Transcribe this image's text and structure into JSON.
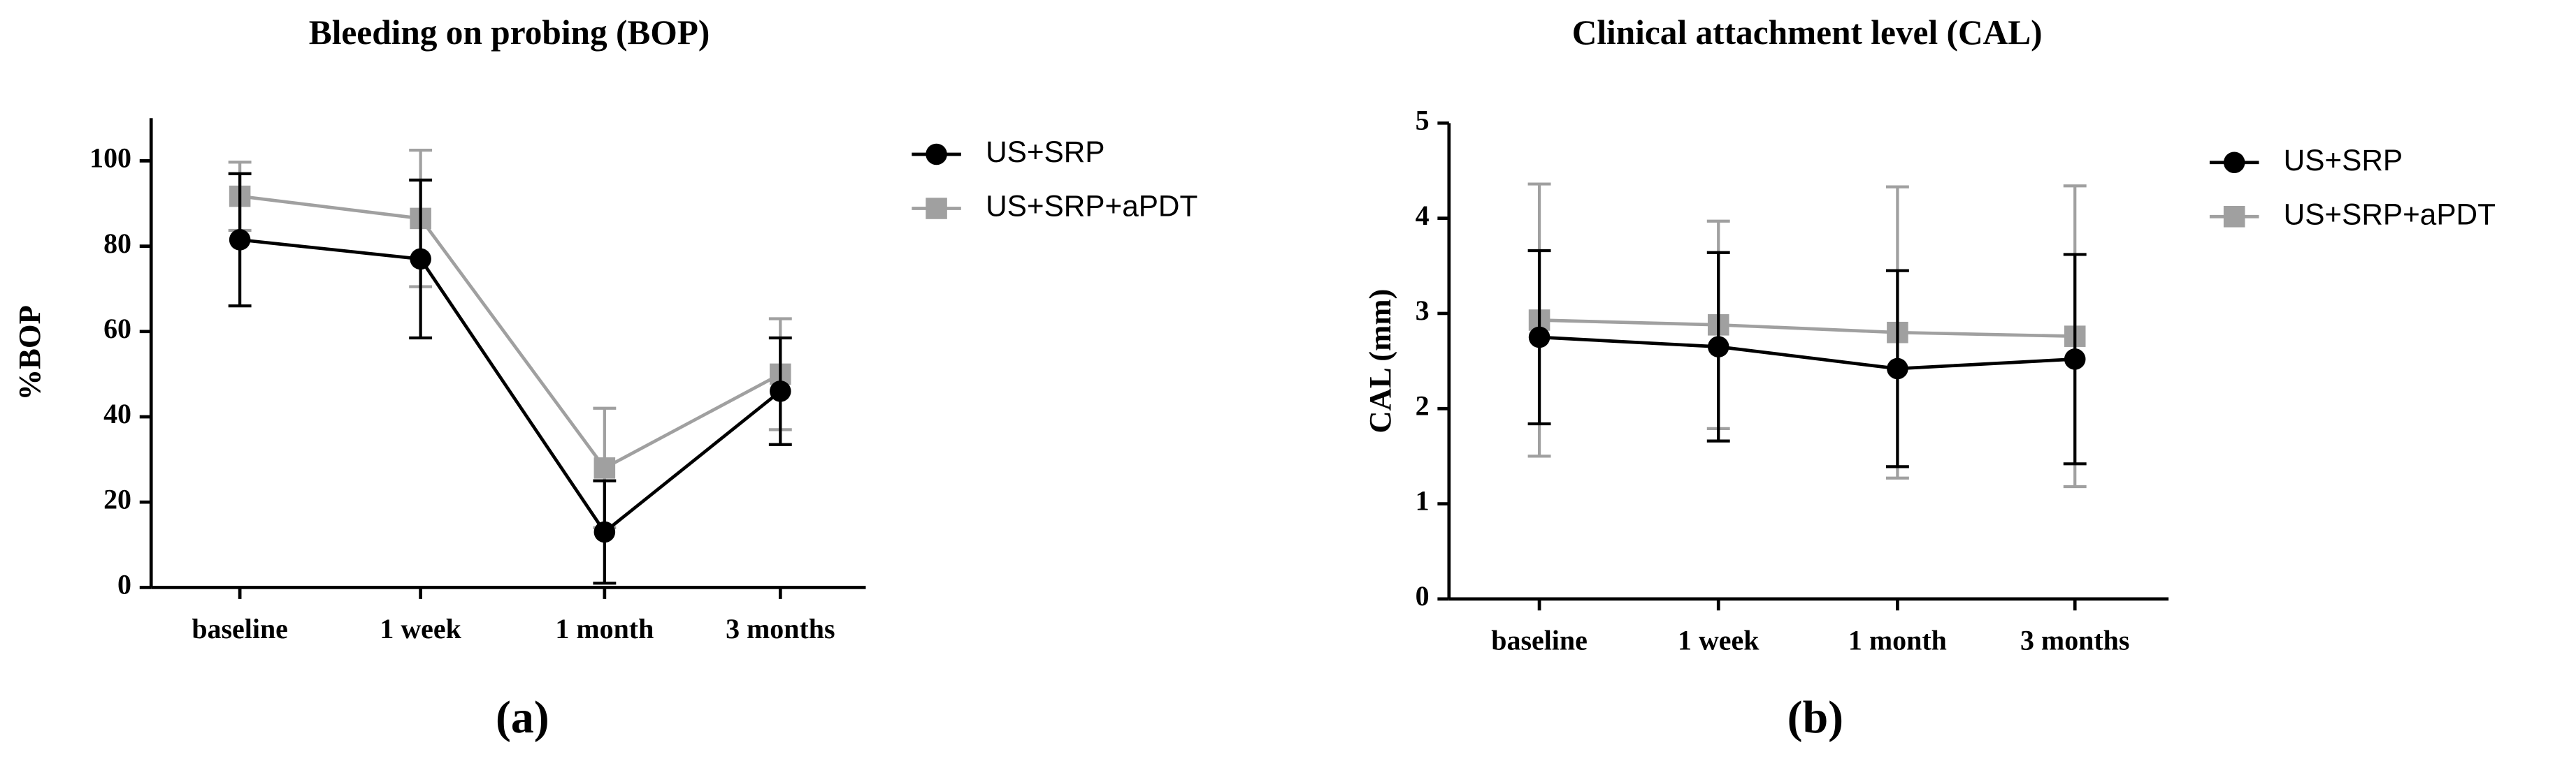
{
  "chart_data": [
    {
      "type": "line",
      "title": "Bleeding on probing (BOP)",
      "ylabel": "%BOP",
      "panel_label": "(a)",
      "categories": [
        "baseline",
        "1 week",
        "1 month",
        "3 months"
      ],
      "ylim": [
        0,
        110
      ],
      "yticks": [
        0,
        20,
        40,
        60,
        80,
        100
      ],
      "series": [
        {
          "name": "US+SRP",
          "color": "#000000",
          "marker": "circle",
          "values": [
            81.5,
            77,
            13,
            46
          ],
          "errors": [
            15.5,
            18.5,
            12,
            12.5
          ]
        },
        {
          "name": "US+SRP+aPDT",
          "color": "#a0a0a0",
          "marker": "square",
          "values": [
            91.7,
            86.5,
            28,
            50
          ],
          "errors": [
            8,
            16,
            14,
            13
          ]
        }
      ]
    },
    {
      "type": "line",
      "title": "Clinical attachment level (CAL)",
      "ylabel": "CAL (mm)",
      "panel_label": "(b)",
      "categories": [
        "baseline",
        "1 week",
        "1 month",
        "3 months"
      ],
      "ylim": [
        0,
        5
      ],
      "yticks": [
        0,
        1,
        2,
        3,
        4,
        5
      ],
      "series": [
        {
          "name": "US+SRP",
          "color": "#000000",
          "marker": "circle",
          "values": [
            2.75,
            2.65,
            2.42,
            2.52
          ],
          "errors": [
            0.91,
            0.99,
            1.03,
            1.1
          ]
        },
        {
          "name": "US+SRP+aPDT",
          "color": "#a0a0a0",
          "marker": "square",
          "values": [
            2.93,
            2.88,
            2.8,
            2.76
          ],
          "errors": [
            1.43,
            1.09,
            1.53,
            1.58
          ]
        }
      ]
    }
  ]
}
